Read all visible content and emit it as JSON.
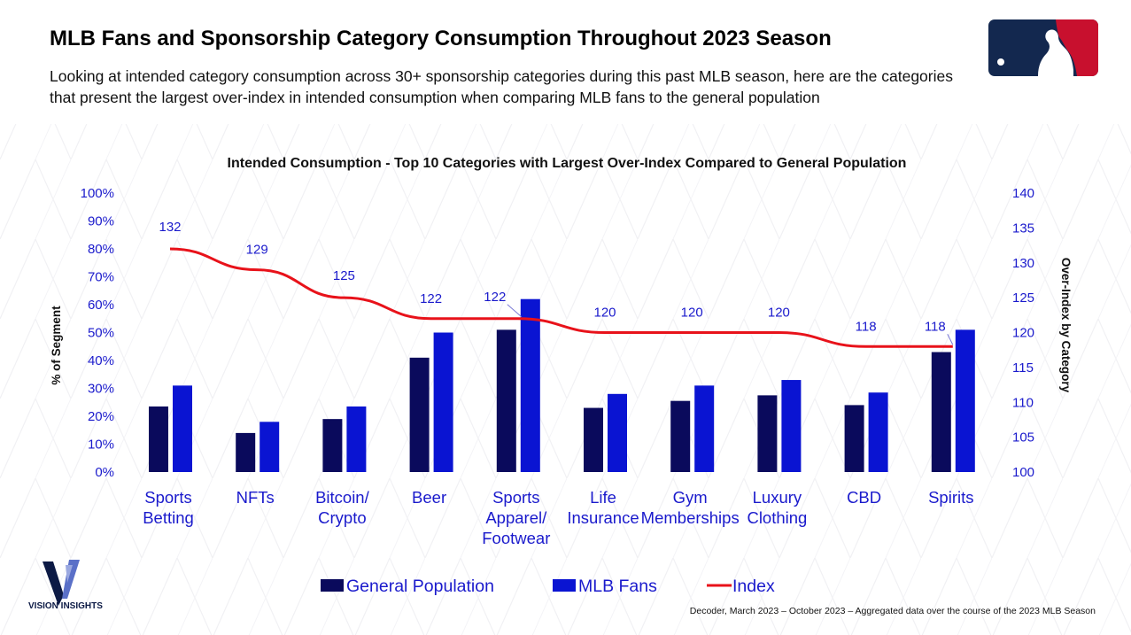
{
  "header": {
    "title": "MLB Fans and Sponsorship Category Consumption Throughout 2023 Season",
    "subtitle": "Looking at intended category consumption across 30+ sponsorship categories during this past MLB season, here are the categories that present the largest over-index in intended consumption when comparing MLB fans to the general population"
  },
  "branding": {
    "mlb_logo": "mlb-logo-icon",
    "vision_logo": "vision-insights-logo-icon",
    "vision_text": "VISION INSIGHTS"
  },
  "footer": {
    "source": "Decoder, March 2023 – October 2023 – Aggregated data over the course of the 2023 MLB Season"
  },
  "colors": {
    "general_population": "#0a0a5c",
    "mlb_fans": "#0a14d2",
    "index": "#e8121a",
    "axis_text": "#1a1acc"
  },
  "chart_data": {
    "type": "bar",
    "title": "Intended Consumption - Top 10 Categories with Largest Over-Index Compared to General Population",
    "ylabel": "% of Segment",
    "y2label": "Over-Index by Category",
    "ylim": [
      0,
      100
    ],
    "y2lim": [
      100,
      140
    ],
    "yticks": [
      "0%",
      "10%",
      "20%",
      "30%",
      "40%",
      "50%",
      "60%",
      "70%",
      "80%",
      "90%",
      "100%"
    ],
    "y2ticks": [
      "100",
      "105",
      "110",
      "115",
      "120",
      "125",
      "130",
      "135",
      "140"
    ],
    "categories": [
      [
        "Sports",
        "Betting"
      ],
      [
        "NFTs"
      ],
      [
        "Bitcoin/",
        "Crypto"
      ],
      [
        "Beer"
      ],
      [
        "Sports",
        "Apparel/",
        "Footwear"
      ],
      [
        "Life",
        "Insurance"
      ],
      [
        "Gym",
        "Memberships"
      ],
      [
        "Luxury",
        "Clothing"
      ],
      [
        "CBD"
      ],
      [
        "Spirits"
      ]
    ],
    "series": [
      {
        "name": "General Population",
        "type": "bar",
        "axis": "left",
        "values": [
          23.5,
          14,
          19,
          41,
          51,
          23,
          25.5,
          27.5,
          24,
          43
        ]
      },
      {
        "name": "MLB Fans",
        "type": "bar",
        "axis": "left",
        "values": [
          31,
          18,
          23.5,
          50,
          62,
          28,
          31,
          33,
          28.5,
          51
        ]
      },
      {
        "name": "Index",
        "type": "line",
        "axis": "right",
        "values": [
          132,
          129,
          125,
          122,
          122,
          120,
          120,
          120,
          118,
          118
        ]
      }
    ],
    "index_labels": [
      "132",
      "129",
      "125",
      "122",
      "122",
      "120",
      "120",
      "120",
      "118",
      "118"
    ],
    "legend": [
      "General Population",
      "MLB Fans",
      "Index"
    ],
    "legend_position": "bottom"
  }
}
